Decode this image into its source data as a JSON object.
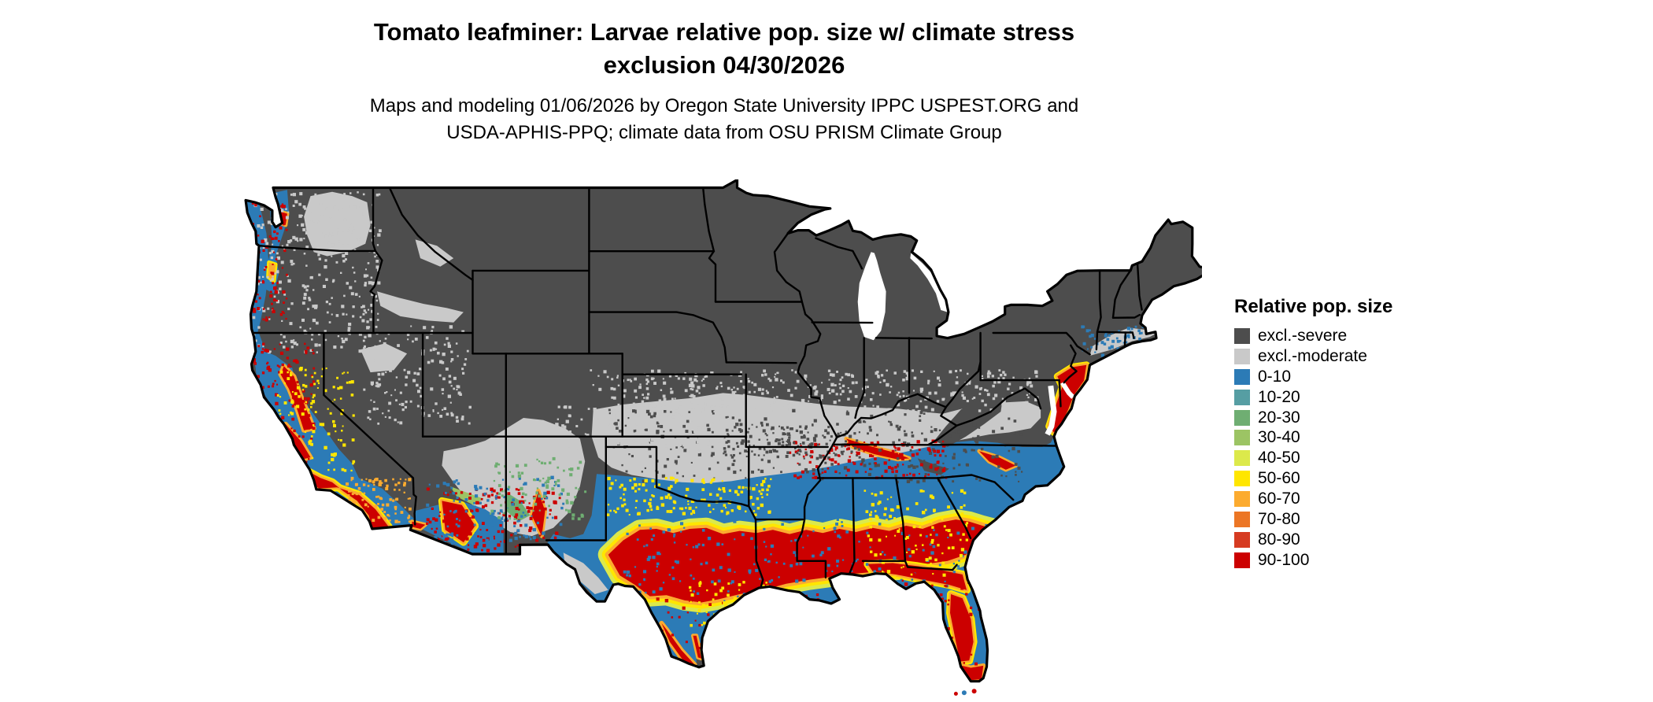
{
  "title": {
    "line1": "Tomato leafminer: Larvae relative pop. size w/ climate stress",
    "line2": "exclusion 04/30/2026"
  },
  "subtitle": {
    "line1": "Maps and modeling 01/06/2026 by Oregon State University IPPC USPEST.ORG and",
    "line2": "USDA-APHIS-PPQ; climate data from OSU PRISM Climate Group"
  },
  "legend": {
    "title": "Relative pop. size",
    "items": [
      {
        "label": "excl.-severe",
        "color": "#4d4d4d"
      },
      {
        "label": "excl.-moderate",
        "color": "#c9c9c9"
      },
      {
        "label": "0-10",
        "color": "#2c7bb6"
      },
      {
        "label": "10-20",
        "color": "#569ea3"
      },
      {
        "label": "20-30",
        "color": "#6fae72"
      },
      {
        "label": "30-40",
        "color": "#9cc464"
      },
      {
        "label": "40-50",
        "color": "#dce94b"
      },
      {
        "label": "50-60",
        "color": "#ffe600"
      },
      {
        "label": "60-70",
        "color": "#fcab2f"
      },
      {
        "label": "70-80",
        "color": "#ec7625"
      },
      {
        "label": "80-90",
        "color": "#d63b21"
      },
      {
        "label": "90-100",
        "color": "#cc0000"
      }
    ]
  },
  "map": {
    "region": "contiguous United States",
    "colors": {
      "background": "#ffffff",
      "state_border": "#000000",
      "country_outline": "#000000",
      "water": "#ffffff"
    }
  }
}
